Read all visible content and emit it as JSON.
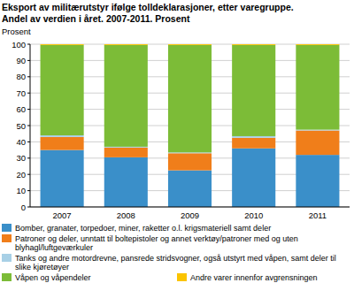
{
  "chart_data": {
    "type": "bar",
    "stacked": true,
    "grid": true,
    "title": "Eksport av militærutstyr ifølge tolldeklarasjoner, etter varegruppe.",
    "subtitle": "Andel av verdien i året. 2007-2011. Prosent",
    "y_label": "Prosent",
    "categories": [
      "2007",
      "2008",
      "2009",
      "2010",
      "2011"
    ],
    "ylim": [
      0,
      100
    ],
    "yticks": [
      0,
      10,
      20,
      30,
      40,
      50,
      60,
      70,
      80,
      90,
      100
    ],
    "series": [
      {
        "name": "Bomber, granater, torpedoer, miner, raketter o.l. krigsmateriell samt deler",
        "color": "#3a8fc9",
        "values": [
          35,
          30.5,
          22.5,
          36,
          32
        ]
      },
      {
        "name": "Patroner og deler, unntatt til boltepistoler og annet verktøy/patroner med og uten blyhagl/luftgeværkuler",
        "color": "#f07e1a",
        "values": [
          8,
          6,
          10.5,
          6.5,
          15
        ]
      },
      {
        "name": "Tanks og andre motordrevne, pansrede stridsvogner, også utstyrt med våpen, samt deler til slike kjøretøyer",
        "color": "#a8d0e6",
        "values": [
          1,
          0.5,
          0.5,
          1,
          0.5
        ]
      },
      {
        "name": "Våpen og våpendeler",
        "color": "#7cbc37",
        "values": [
          55.5,
          62.5,
          66,
          56,
          52
        ]
      },
      {
        "name": "Andre varer innenfor avgrensningen",
        "color": "#fbc400",
        "values": [
          0.5,
          0.5,
          0.5,
          0.5,
          0.5
        ]
      }
    ]
  }
}
